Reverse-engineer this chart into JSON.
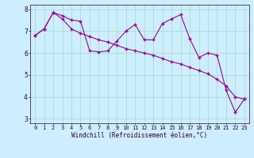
{
  "title": "",
  "xlabel": "Windchill (Refroidissement éolien,°C)",
  "ylabel": "",
  "bg_color": "#cceeff",
  "line_color": "#990099",
  "grid_color": "#aaddcc",
  "xlim": [
    -0.5,
    23.5
  ],
  "ylim": [
    2.8,
    8.2
  ],
  "yticks": [
    3,
    4,
    5,
    6,
    7,
    8
  ],
  "xticks": [
    0,
    1,
    2,
    3,
    4,
    5,
    6,
    7,
    8,
    9,
    10,
    11,
    12,
    13,
    14,
    15,
    16,
    17,
    18,
    19,
    20,
    21,
    22,
    23
  ],
  "series1_x": [
    0,
    1,
    2,
    3,
    4,
    5,
    6,
    7,
    8,
    9,
    10,
    11,
    12,
    13,
    14,
    15,
    16,
    17,
    18,
    19,
    20,
    21,
    22,
    23
  ],
  "series1_y": [
    6.8,
    7.1,
    7.85,
    7.7,
    7.5,
    7.45,
    6.1,
    6.05,
    6.1,
    6.55,
    7.0,
    7.3,
    6.6,
    6.6,
    7.35,
    7.55,
    7.75,
    6.65,
    5.8,
    6.0,
    5.9,
    4.3,
    3.3,
    3.9
  ],
  "series2_x": [
    0,
    1,
    2,
    3,
    4,
    5,
    6,
    7,
    8,
    9,
    10,
    11,
    12,
    13,
    14,
    15,
    16,
    17,
    18,
    19,
    20,
    21,
    22,
    23
  ],
  "series2_y": [
    6.8,
    7.1,
    7.85,
    7.55,
    7.1,
    6.9,
    6.75,
    6.6,
    6.5,
    6.35,
    6.2,
    6.1,
    6.0,
    5.9,
    5.75,
    5.6,
    5.5,
    5.35,
    5.2,
    5.05,
    4.8,
    4.5,
    4.0,
    3.9
  ],
  "tick_fontsize": 5,
  "xlabel_fontsize": 5.5,
  "marker_size": 2.5,
  "line_width": 0.8
}
